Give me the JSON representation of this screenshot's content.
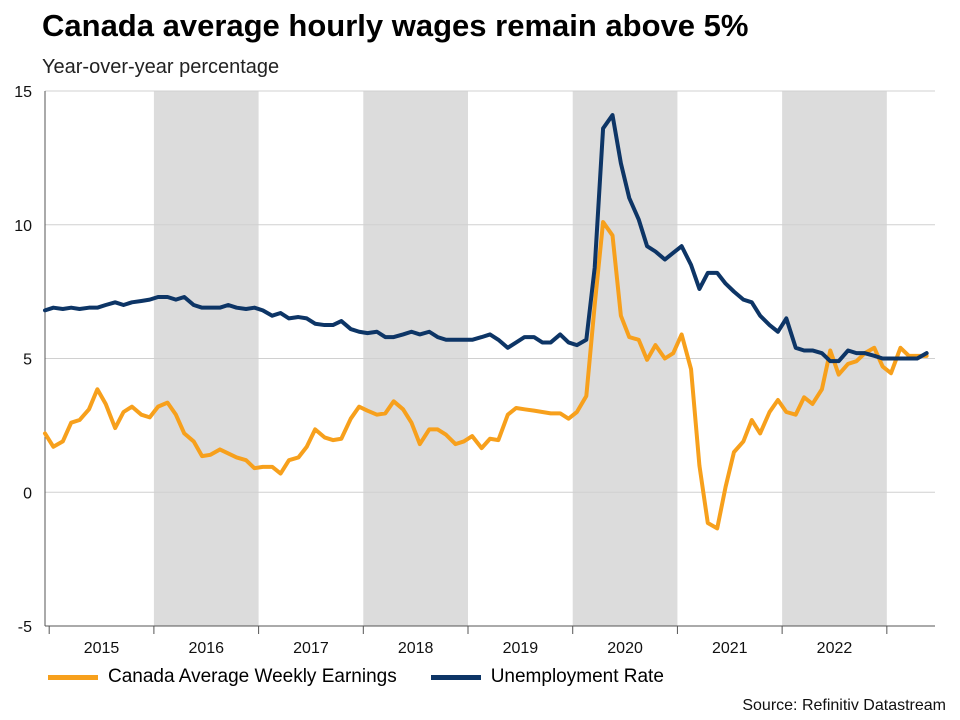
{
  "chart_data": {
    "type": "line",
    "title": "Canada average hourly wages remain above 5%",
    "subtitle": "Year-over-year percentage",
    "source": "Source: Refinitiv Datastream",
    "xlabel": "",
    "ylabel": "",
    "ylim": [
      -5,
      15
    ],
    "yticks": [
      15,
      10,
      5,
      0,
      -5
    ],
    "xlim": [
      2014.96,
      2023.46
    ],
    "years": [
      "2015",
      "2016",
      "2017",
      "2018",
      "2019",
      "2020",
      "2021",
      "2022"
    ],
    "shaded_years": [
      2016,
      2018,
      2020,
      2022
    ],
    "grid": true,
    "legend_position": "bottom-left",
    "series": [
      {
        "name": "Canada Average Weekly Earnings",
        "color": "#f7a01c",
        "points": [
          [
            2014.96,
            2.2
          ],
          [
            2015.04,
            1.7
          ],
          [
            2015.13,
            1.9
          ],
          [
            2015.21,
            2.6
          ],
          [
            2015.29,
            2.7
          ],
          [
            2015.38,
            3.1
          ],
          [
            2015.46,
            3.85
          ],
          [
            2015.54,
            3.3
          ],
          [
            2015.63,
            2.4
          ],
          [
            2015.71,
            3.0
          ],
          [
            2015.79,
            3.2
          ],
          [
            2015.88,
            2.9
          ],
          [
            2015.96,
            2.8
          ],
          [
            2016.04,
            3.2
          ],
          [
            2016.13,
            3.35
          ],
          [
            2016.21,
            2.9
          ],
          [
            2016.29,
            2.2
          ],
          [
            2016.38,
            1.9
          ],
          [
            2016.46,
            1.35
          ],
          [
            2016.54,
            1.4
          ],
          [
            2016.63,
            1.6
          ],
          [
            2016.71,
            1.45
          ],
          [
            2016.79,
            1.3
          ],
          [
            2016.88,
            1.2
          ],
          [
            2016.96,
            0.9
          ],
          [
            2017.04,
            0.95
          ],
          [
            2017.13,
            0.95
          ],
          [
            2017.21,
            0.7
          ],
          [
            2017.29,
            1.2
          ],
          [
            2017.38,
            1.3
          ],
          [
            2017.46,
            1.7
          ],
          [
            2017.54,
            2.35
          ],
          [
            2017.63,
            2.05
          ],
          [
            2017.71,
            1.95
          ],
          [
            2017.79,
            2.0
          ],
          [
            2017.88,
            2.75
          ],
          [
            2017.96,
            3.2
          ],
          [
            2018.04,
            3.05
          ],
          [
            2018.13,
            2.9
          ],
          [
            2018.21,
            2.95
          ],
          [
            2018.29,
            3.4
          ],
          [
            2018.38,
            3.1
          ],
          [
            2018.46,
            2.6
          ],
          [
            2018.54,
            1.8
          ],
          [
            2018.63,
            2.35
          ],
          [
            2018.71,
            2.35
          ],
          [
            2018.79,
            2.15
          ],
          [
            2018.88,
            1.8
          ],
          [
            2018.96,
            1.9
          ],
          [
            2019.04,
            2.1
          ],
          [
            2019.13,
            1.65
          ],
          [
            2019.21,
            2.0
          ],
          [
            2019.29,
            1.95
          ],
          [
            2019.38,
            2.9
          ],
          [
            2019.46,
            3.15
          ],
          [
            2019.54,
            3.1
          ],
          [
            2019.63,
            3.05
          ],
          [
            2019.71,
            3.0
          ],
          [
            2019.79,
            2.95
          ],
          [
            2019.88,
            2.95
          ],
          [
            2019.96,
            2.75
          ],
          [
            2020.04,
            3.0
          ],
          [
            2020.13,
            3.6
          ],
          [
            2020.21,
            7.0
          ],
          [
            2020.29,
            10.1
          ],
          [
            2020.38,
            9.6
          ],
          [
            2020.46,
            6.6
          ],
          [
            2020.54,
            5.8
          ],
          [
            2020.63,
            5.7
          ],
          [
            2020.71,
            4.95
          ],
          [
            2020.79,
            5.5
          ],
          [
            2020.88,
            5.0
          ],
          [
            2020.96,
            5.2
          ],
          [
            2021.04,
            5.9
          ],
          [
            2021.13,
            4.6
          ],
          [
            2021.21,
            1.0
          ],
          [
            2021.29,
            -1.15
          ],
          [
            2021.38,
            -1.35
          ],
          [
            2021.46,
            0.2
          ],
          [
            2021.54,
            1.5
          ],
          [
            2021.63,
            1.9
          ],
          [
            2021.71,
            2.7
          ],
          [
            2021.79,
            2.2
          ],
          [
            2021.88,
            3.0
          ],
          [
            2021.96,
            3.45
          ],
          [
            2022.04,
            3.0
          ],
          [
            2022.13,
            2.9
          ],
          [
            2022.21,
            3.55
          ],
          [
            2022.29,
            3.3
          ],
          [
            2022.38,
            3.85
          ],
          [
            2022.46,
            5.3
          ],
          [
            2022.54,
            4.4
          ],
          [
            2022.63,
            4.8
          ],
          [
            2022.71,
            4.9
          ],
          [
            2022.79,
            5.2
          ],
          [
            2022.88,
            5.4
          ],
          [
            2022.96,
            4.7
          ],
          [
            2023.04,
            4.45
          ],
          [
            2023.13,
            5.4
          ],
          [
            2023.21,
            5.1
          ],
          [
            2023.29,
            5.1
          ],
          [
            2023.38,
            5.1
          ]
        ]
      },
      {
        "name": "Unemployment Rate",
        "color": "#0d3566",
        "points": [
          [
            2014.96,
            6.8
          ],
          [
            2015.04,
            6.9
          ],
          [
            2015.13,
            6.85
          ],
          [
            2015.21,
            6.9
          ],
          [
            2015.29,
            6.85
          ],
          [
            2015.38,
            6.9
          ],
          [
            2015.46,
            6.9
          ],
          [
            2015.54,
            7.0
          ],
          [
            2015.63,
            7.1
          ],
          [
            2015.71,
            7.0
          ],
          [
            2015.79,
            7.1
          ],
          [
            2015.88,
            7.15
          ],
          [
            2015.96,
            7.2
          ],
          [
            2016.04,
            7.3
          ],
          [
            2016.13,
            7.3
          ],
          [
            2016.21,
            7.2
          ],
          [
            2016.29,
            7.3
          ],
          [
            2016.38,
            7.0
          ],
          [
            2016.46,
            6.9
          ],
          [
            2016.54,
            6.9
          ],
          [
            2016.63,
            6.9
          ],
          [
            2016.71,
            7.0
          ],
          [
            2016.79,
            6.9
          ],
          [
            2016.88,
            6.85
          ],
          [
            2016.96,
            6.9
          ],
          [
            2017.04,
            6.8
          ],
          [
            2017.13,
            6.6
          ],
          [
            2017.21,
            6.7
          ],
          [
            2017.29,
            6.5
          ],
          [
            2017.38,
            6.55
          ],
          [
            2017.46,
            6.5
          ],
          [
            2017.54,
            6.3
          ],
          [
            2017.63,
            6.25
          ],
          [
            2017.71,
            6.25
          ],
          [
            2017.79,
            6.4
          ],
          [
            2017.88,
            6.1
          ],
          [
            2017.96,
            6.0
          ],
          [
            2018.04,
            5.95
          ],
          [
            2018.13,
            6.0
          ],
          [
            2018.21,
            5.8
          ],
          [
            2018.29,
            5.8
          ],
          [
            2018.38,
            5.9
          ],
          [
            2018.46,
            6.0
          ],
          [
            2018.54,
            5.9
          ],
          [
            2018.63,
            6.0
          ],
          [
            2018.71,
            5.8
          ],
          [
            2018.79,
            5.7
          ],
          [
            2018.88,
            5.7
          ],
          [
            2018.96,
            5.7
          ],
          [
            2019.04,
            5.7
          ],
          [
            2019.13,
            5.8
          ],
          [
            2019.21,
            5.9
          ],
          [
            2019.29,
            5.7
          ],
          [
            2019.38,
            5.4
          ],
          [
            2019.46,
            5.6
          ],
          [
            2019.54,
            5.8
          ],
          [
            2019.63,
            5.8
          ],
          [
            2019.71,
            5.6
          ],
          [
            2019.79,
            5.6
          ],
          [
            2019.88,
            5.9
          ],
          [
            2019.96,
            5.6
          ],
          [
            2020.04,
            5.5
          ],
          [
            2020.13,
            5.7
          ],
          [
            2020.21,
            8.4
          ],
          [
            2020.29,
            13.6
          ],
          [
            2020.38,
            14.1
          ],
          [
            2020.46,
            12.3
          ],
          [
            2020.54,
            11.0
          ],
          [
            2020.63,
            10.2
          ],
          [
            2020.71,
            9.2
          ],
          [
            2020.79,
            9.0
          ],
          [
            2020.88,
            8.7
          ],
          [
            2020.96,
            8.95
          ],
          [
            2021.04,
            9.2
          ],
          [
            2021.13,
            8.5
          ],
          [
            2021.21,
            7.6
          ],
          [
            2021.29,
            8.2
          ],
          [
            2021.38,
            8.2
          ],
          [
            2021.46,
            7.8
          ],
          [
            2021.54,
            7.5
          ],
          [
            2021.63,
            7.2
          ],
          [
            2021.71,
            7.1
          ],
          [
            2021.79,
            6.6
          ],
          [
            2021.88,
            6.25
          ],
          [
            2021.96,
            6.0
          ],
          [
            2022.04,
            6.5
          ],
          [
            2022.13,
            5.4
          ],
          [
            2022.21,
            5.3
          ],
          [
            2022.29,
            5.3
          ],
          [
            2022.38,
            5.2
          ],
          [
            2022.46,
            4.9
          ],
          [
            2022.54,
            4.9
          ],
          [
            2022.63,
            5.3
          ],
          [
            2022.71,
            5.2
          ],
          [
            2022.79,
            5.2
          ],
          [
            2022.88,
            5.1
          ],
          [
            2022.96,
            5.0
          ],
          [
            2023.04,
            5.0
          ],
          [
            2023.13,
            5.0
          ],
          [
            2023.21,
            5.0
          ],
          [
            2023.29,
            5.0
          ],
          [
            2023.38,
            5.2
          ]
        ]
      }
    ]
  }
}
